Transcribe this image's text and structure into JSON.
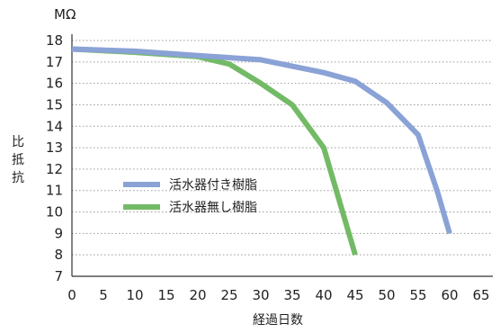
{
  "chart_data": {
    "type": "line",
    "title": "",
    "unit_label": "MΩ",
    "ylabel": "比抵抗",
    "xlabel": "経過日数",
    "xlim": [
      0,
      65
    ],
    "ylim": [
      7,
      18.5
    ],
    "x_ticks": [
      0,
      5,
      10,
      15,
      20,
      25,
      30,
      35,
      40,
      45,
      50,
      55,
      60,
      65
    ],
    "y_ticks": [
      7,
      8,
      9,
      10,
      11,
      12,
      13,
      14,
      15,
      16,
      17,
      18
    ],
    "grid": "horizontal dotted",
    "legend_position": "center-left",
    "series": [
      {
        "name": "活水器付き樹脂",
        "color": "#8aa2d6",
        "points": [
          [
            0,
            17.6
          ],
          [
            10,
            17.5
          ],
          [
            20,
            17.3
          ],
          [
            30,
            17.1
          ],
          [
            35,
            16.8
          ],
          [
            40,
            16.5
          ],
          [
            45,
            16.1
          ],
          [
            50,
            15.1
          ],
          [
            55,
            13.6
          ],
          [
            58,
            11.0
          ],
          [
            60,
            9.0
          ]
        ]
      },
      {
        "name": "活水器無し樹脂",
        "color": "#73ba66",
        "points": [
          [
            0,
            17.6
          ],
          [
            10,
            17.45
          ],
          [
            20,
            17.25
          ],
          [
            25,
            16.9
          ],
          [
            30,
            16.0
          ],
          [
            35,
            15.0
          ],
          [
            40,
            13.0
          ],
          [
            42.5,
            10.5
          ],
          [
            45,
            8.0
          ]
        ]
      }
    ]
  }
}
